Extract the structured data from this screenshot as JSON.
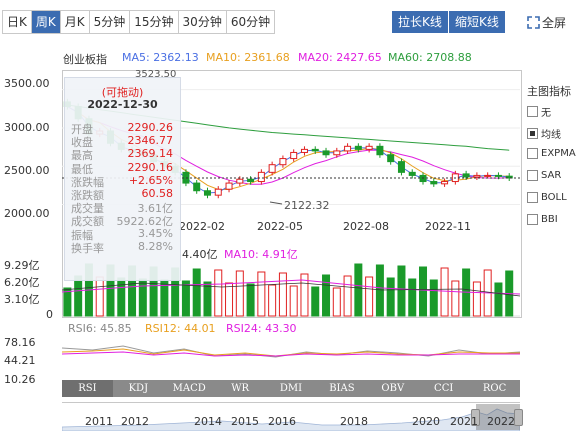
{
  "periods": [
    "日K",
    "周K",
    "月K",
    "5分钟",
    "15分钟",
    "30分钟",
    "60分钟"
  ],
  "active_period": 1,
  "buttons": {
    "longer": "拉长K线",
    "shorter": "缩短K线",
    "fullscreen": "全屏"
  },
  "ma_legend": {
    "name": "创业板指",
    "ma5": "MA5: 2362.13",
    "ma10": "MA10: 2361.68",
    "ma20": "MA20: 2427.65",
    "ma60": "MA60: 2708.88"
  },
  "colors": {
    "ma5": "#4a6fe3",
    "ma10": "#e8a020",
    "ma20": "#e020e0",
    "ma60": "#2e9e3e",
    "up": "#e02020",
    "down": "#1a9a2a",
    "accent": "#3b6cb1"
  },
  "price_axis": [
    "3500.00",
    "3000.00",
    "2500.00",
    "2000.00"
  ],
  "price_annotations": {
    "high": "3523.50",
    "low": "2122.32"
  },
  "date_axis": [
    "2022-02",
    "2022-05",
    "2022-08",
    "2022-11"
  ],
  "popup": {
    "title": "(可拖动)",
    "date": "2022-12-30",
    "rows": [
      {
        "k": "开盘",
        "v": "2290.26",
        "c": "#e02020"
      },
      {
        "k": "收盘",
        "v": "2346.77",
        "c": "#e02020"
      },
      {
        "k": "最高",
        "v": "2369.14",
        "c": "#e02020"
      },
      {
        "k": "最低",
        "v": "2290.16",
        "c": "#e02020"
      },
      {
        "k": "涨跌幅",
        "v": "+2.65%",
        "c": "#e02020"
      },
      {
        "k": "涨跌额",
        "v": "60.58",
        "c": "#e02020"
      },
      {
        "k": "成交量",
        "v": "3.61亿",
        "c": "#999"
      },
      {
        "k": "成交额",
        "v": "5922.62亿",
        "c": "#999"
      },
      {
        "k": "振幅",
        "v": "3.45%",
        "c": "#999"
      },
      {
        "k": "换手率",
        "v": "8.28%",
        "c": "#999"
      }
    ]
  },
  "volume_legend": {
    "ma5": "4.40亿",
    "ma10": "MA10: 4.91亿"
  },
  "volume_axis": [
    "9.29亿",
    "6.20亿",
    "3.10亿",
    "0"
  ],
  "rsi_legend": {
    "rsi6": "RSI6: 45.85",
    "rsi12": "RSI12: 44.01",
    "rsi24": "RSI24: 43.30"
  },
  "rsi_axis": [
    "78.16",
    "44.21",
    "10.26"
  ],
  "main_indicator": {
    "title": "主图指标",
    "options": [
      {
        "label": "无",
        "checked": false
      },
      {
        "label": "均线",
        "checked": true
      },
      {
        "label": "EXPMA",
        "checked": false
      },
      {
        "label": "SAR",
        "checked": false
      },
      {
        "label": "BOLL",
        "checked": false
      },
      {
        "label": "BBI",
        "checked": false
      }
    ]
  },
  "indicators": [
    "RSI",
    "KDJ",
    "MACD",
    "WR",
    "DMI",
    "BIAS",
    "OBV",
    "CCI",
    "ROC"
  ],
  "active_indicator": 0,
  "timeline_years": [
    "2011",
    "2012",
    "2014",
    "2015",
    "2016",
    "2018",
    "2020",
    "2021",
    "2022"
  ],
  "chart_data": {
    "type": "candlestick",
    "title": "创业板指",
    "period": "weekly",
    "date_range": [
      "2022-01",
      "2022-12-30"
    ],
    "closes": [
      3280,
      3120,
      2920,
      2960,
      2800,
      2720,
      2680,
      2650,
      2560,
      2500,
      2420,
      2280,
      2180,
      2122,
      2200,
      2280,
      2330,
      2300,
      2420,
      2520,
      2600,
      2680,
      2720,
      2700,
      2650,
      2700,
      2760,
      2720,
      2760,
      2650,
      2560,
      2420,
      2380,
      2300,
      2270,
      2300,
      2400,
      2360,
      2380,
      2380,
      2370,
      2347
    ],
    "ylim": [
      1850,
      3600
    ]
  }
}
